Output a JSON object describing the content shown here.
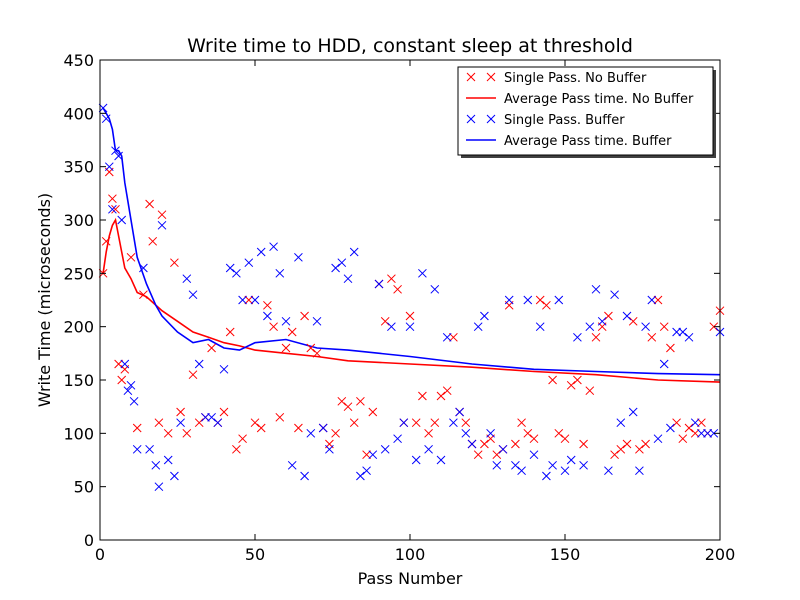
{
  "chart_data": {
    "type": "line",
    "title": "Write time to HDD, constant sleep at threshold",
    "xlabel": "Pass Number",
    "ylabel": "Write Time (microseconds)",
    "xlim": [
      0,
      200
    ],
    "ylim": [
      0,
      450
    ],
    "xticks": [
      0,
      50,
      100,
      150,
      200
    ],
    "yticks": [
      0,
      50,
      100,
      150,
      200,
      250,
      300,
      350,
      400,
      450
    ],
    "grid": false,
    "legend_position": "top-right",
    "legend": [
      {
        "label": "Single Pass. No Buffer",
        "color": "#ff0000",
        "marker": "x"
      },
      {
        "label": "Average Pass time. No Buffer",
        "color": "#ff0000",
        "marker": "line"
      },
      {
        "label": "Single Pass. Buffer",
        "color": "#0000ff",
        "marker": "x"
      },
      {
        "label": "Average Pass time. Buffer",
        "color": "#0000ff",
        "marker": "line"
      }
    ],
    "series": [
      {
        "name": "Average Pass time. No Buffer",
        "kind": "line",
        "color": "#ff0000",
        "x": [
          1,
          2,
          3,
          4,
          5,
          6,
          7,
          8,
          10,
          12,
          15,
          20,
          25,
          30,
          35,
          40,
          45,
          50,
          60,
          70,
          80,
          100,
          120,
          140,
          160,
          180,
          200
        ],
        "y": [
          250,
          270,
          285,
          295,
          300,
          285,
          270,
          255,
          245,
          232,
          228,
          215,
          205,
          195,
          190,
          185,
          182,
          178,
          175,
          172,
          168,
          165,
          162,
          158,
          155,
          150,
          148
        ]
      },
      {
        "name": "Average Pass time. Buffer",
        "kind": "line",
        "color": "#0000ff",
        "x": [
          1,
          2,
          3,
          4,
          5,
          6,
          7,
          8,
          10,
          12,
          15,
          18,
          20,
          25,
          30,
          35,
          40,
          45,
          50,
          60,
          70,
          80,
          100,
          120,
          140,
          160,
          180,
          200
        ],
        "y": [
          405,
          400,
          395,
          385,
          365,
          365,
          360,
          335,
          300,
          265,
          240,
          220,
          210,
          195,
          185,
          188,
          180,
          178,
          185,
          188,
          180,
          178,
          172,
          165,
          160,
          158,
          156,
          155
        ]
      },
      {
        "name": "Single Pass. No Buffer",
        "kind": "scatter",
        "color": "#ff0000",
        "x": [
          1,
          2,
          3,
          4,
          5,
          6,
          7,
          8,
          10,
          12,
          14,
          16,
          17,
          19,
          20,
          22,
          24,
          26,
          28,
          30,
          32,
          34,
          36,
          38,
          40,
          42,
          44,
          46,
          48,
          50,
          52,
          54,
          56,
          58,
          60,
          62,
          64,
          66,
          68,
          70,
          72,
          74,
          76,
          78,
          80,
          82,
          84,
          86,
          88,
          90,
          92,
          94,
          96,
          98,
          100,
          102,
          104,
          106,
          108,
          110,
          112,
          114,
          116,
          118,
          120,
          122,
          124,
          126,
          128,
          130,
          132,
          134,
          136,
          138,
          140,
          142,
          144,
          146,
          148,
          150,
          152,
          154,
          156,
          158,
          160,
          162,
          164,
          166,
          168,
          170,
          172,
          174,
          176,
          178,
          180,
          182,
          184,
          186,
          188,
          190,
          192,
          194,
          196,
          198,
          200
        ],
        "y": [
          250,
          280,
          345,
          320,
          310,
          165,
          150,
          160,
          265,
          105,
          230,
          315,
          280,
          110,
          305,
          100,
          260,
          120,
          100,
          155,
          110,
          115,
          180,
          110,
          120,
          195,
          85,
          95,
          225,
          110,
          105,
          220,
          200,
          115,
          180,
          195,
          105,
          210,
          180,
          175,
          105,
          90,
          100,
          130,
          125,
          110,
          130,
          80,
          120,
          240,
          205,
          245,
          235,
          110,
          210,
          110,
          135,
          100,
          110,
          135,
          140,
          190,
          120,
          110,
          90,
          80,
          90,
          95,
          80,
          85,
          220,
          90,
          110,
          100,
          95,
          225,
          220,
          150,
          100,
          95,
          145,
          150,
          90,
          140,
          190,
          200,
          210,
          80,
          85,
          90,
          205,
          85,
          90,
          190,
          225,
          200,
          180,
          110,
          95,
          105,
          100,
          110,
          100,
          200,
          215
        ]
      },
      {
        "name": "Single Pass. Buffer",
        "kind": "scatter",
        "color": "#0000ff",
        "x": [
          1,
          2,
          3,
          4,
          5,
          6,
          7,
          8,
          9,
          10,
          11,
          12,
          14,
          16,
          18,
          19,
          20,
          22,
          24,
          26,
          28,
          30,
          32,
          34,
          36,
          38,
          40,
          42,
          44,
          46,
          48,
          50,
          52,
          54,
          56,
          58,
          60,
          62,
          64,
          66,
          68,
          70,
          72,
          74,
          76,
          78,
          80,
          82,
          84,
          86,
          88,
          90,
          92,
          94,
          96,
          98,
          100,
          102,
          104,
          106,
          108,
          110,
          112,
          114,
          116,
          118,
          120,
          122,
          124,
          126,
          128,
          130,
          132,
          134,
          136,
          138,
          140,
          142,
          144,
          146,
          148,
          150,
          152,
          154,
          156,
          158,
          160,
          162,
          164,
          166,
          168,
          170,
          172,
          174,
          176,
          178,
          180,
          182,
          184,
          186,
          188,
          190,
          192,
          194,
          196,
          198,
          200
        ],
        "y": [
          405,
          395,
          350,
          310,
          365,
          360,
          300,
          165,
          140,
          145,
          130,
          85,
          255,
          85,
          70,
          50,
          295,
          75,
          60,
          110,
          245,
          230,
          165,
          115,
          115,
          110,
          160,
          255,
          250,
          225,
          260,
          225,
          270,
          210,
          275,
          250,
          205,
          70,
          265,
          60,
          100,
          205,
          105,
          85,
          255,
          260,
          245,
          270,
          60,
          65,
          80,
          240,
          85,
          200,
          95,
          110,
          200,
          75,
          250,
          85,
          235,
          75,
          190,
          110,
          120,
          100,
          90,
          200,
          210,
          100,
          70,
          85,
          225,
          70,
          65,
          225,
          80,
          200,
          60,
          70,
          225,
          65,
          75,
          190,
          70,
          200,
          235,
          205,
          65,
          230,
          110,
          210,
          120,
          65,
          200,
          225,
          95,
          165,
          105,
          195,
          195,
          190,
          110,
          100,
          100,
          100,
          195
        ]
      }
    ]
  }
}
